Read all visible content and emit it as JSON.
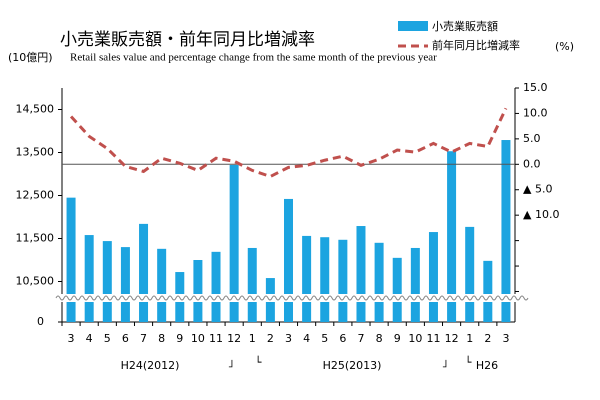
{
  "chart_data": {
    "type": "bar-line",
    "title": "小売業販売額・前年同月比増減率",
    "subtitle": "Retail sales value and percentage change  from the same month of the previous year",
    "y_label": "(10億円)",
    "y2_label": "(%)",
    "categories": [
      "3",
      "4",
      "5",
      "6",
      "7",
      "8",
      "9",
      "10",
      "11",
      "12",
      "1",
      "2",
      "3",
      "4",
      "5",
      "6",
      "7",
      "8",
      "9",
      "10",
      "11",
      "12",
      "1",
      "2",
      "3"
    ],
    "group_labels": [
      "H24(2012)",
      "H25(2013)",
      "H26"
    ],
    "group_marks": [
      "」",
      "└",
      "」",
      "└"
    ],
    "series": [
      {
        "name": "小売業販売額",
        "type": "bar",
        "color": "#1ca4e0",
        "values": [
          12450,
          11580,
          11440,
          11300,
          11840,
          11260,
          10720,
          11000,
          11190,
          13210,
          11280,
          10580,
          12420,
          11560,
          11530,
          11470,
          11790,
          11400,
          11050,
          11280,
          11650,
          13530,
          11770,
          10980,
          13790
        ]
      },
      {
        "name": "前年同月比増減率",
        "type": "line",
        "axis": "y2",
        "color": "#c0504d",
        "values": [
          9.4,
          5.5,
          3.1,
          -0.4,
          -1.4,
          1.2,
          0.2,
          -1.2,
          1.2,
          0.6,
          -1.2,
          -2.4,
          -0.6,
          -0.2,
          0.8,
          1.6,
          -0.2,
          1.0,
          2.8,
          2.4,
          4.1,
          2.4,
          4.1,
          3.5,
          11.0
        ]
      }
    ],
    "ylim": [
      10000,
      15000
    ],
    "yticks": [
      {
        "value": 10500,
        "label": "10,500"
      },
      {
        "value": 11500,
        "label": "11,500"
      },
      {
        "value": 12500,
        "label": "12,500"
      },
      {
        "value": 13500,
        "label": "13,500"
      },
      {
        "value": 14500,
        "label": "14,500"
      }
    ],
    "y_break_tick": 0,
    "y2lim": [
      -31,
      15
    ],
    "y2ticks": [
      {
        "value": 15,
        "label": "15.0"
      },
      {
        "value": 10,
        "label": "10.0"
      },
      {
        "value": 5,
        "label": "5.0"
      },
      {
        "value": 0,
        "label": "0.0"
      },
      {
        "value": -5,
        "label": "▲ 5.0"
      },
      {
        "value": -10,
        "label": "▲ 10.0"
      }
    ],
    "y2minor": [
      -15,
      -20,
      -25
    ],
    "zero_line": true
  }
}
